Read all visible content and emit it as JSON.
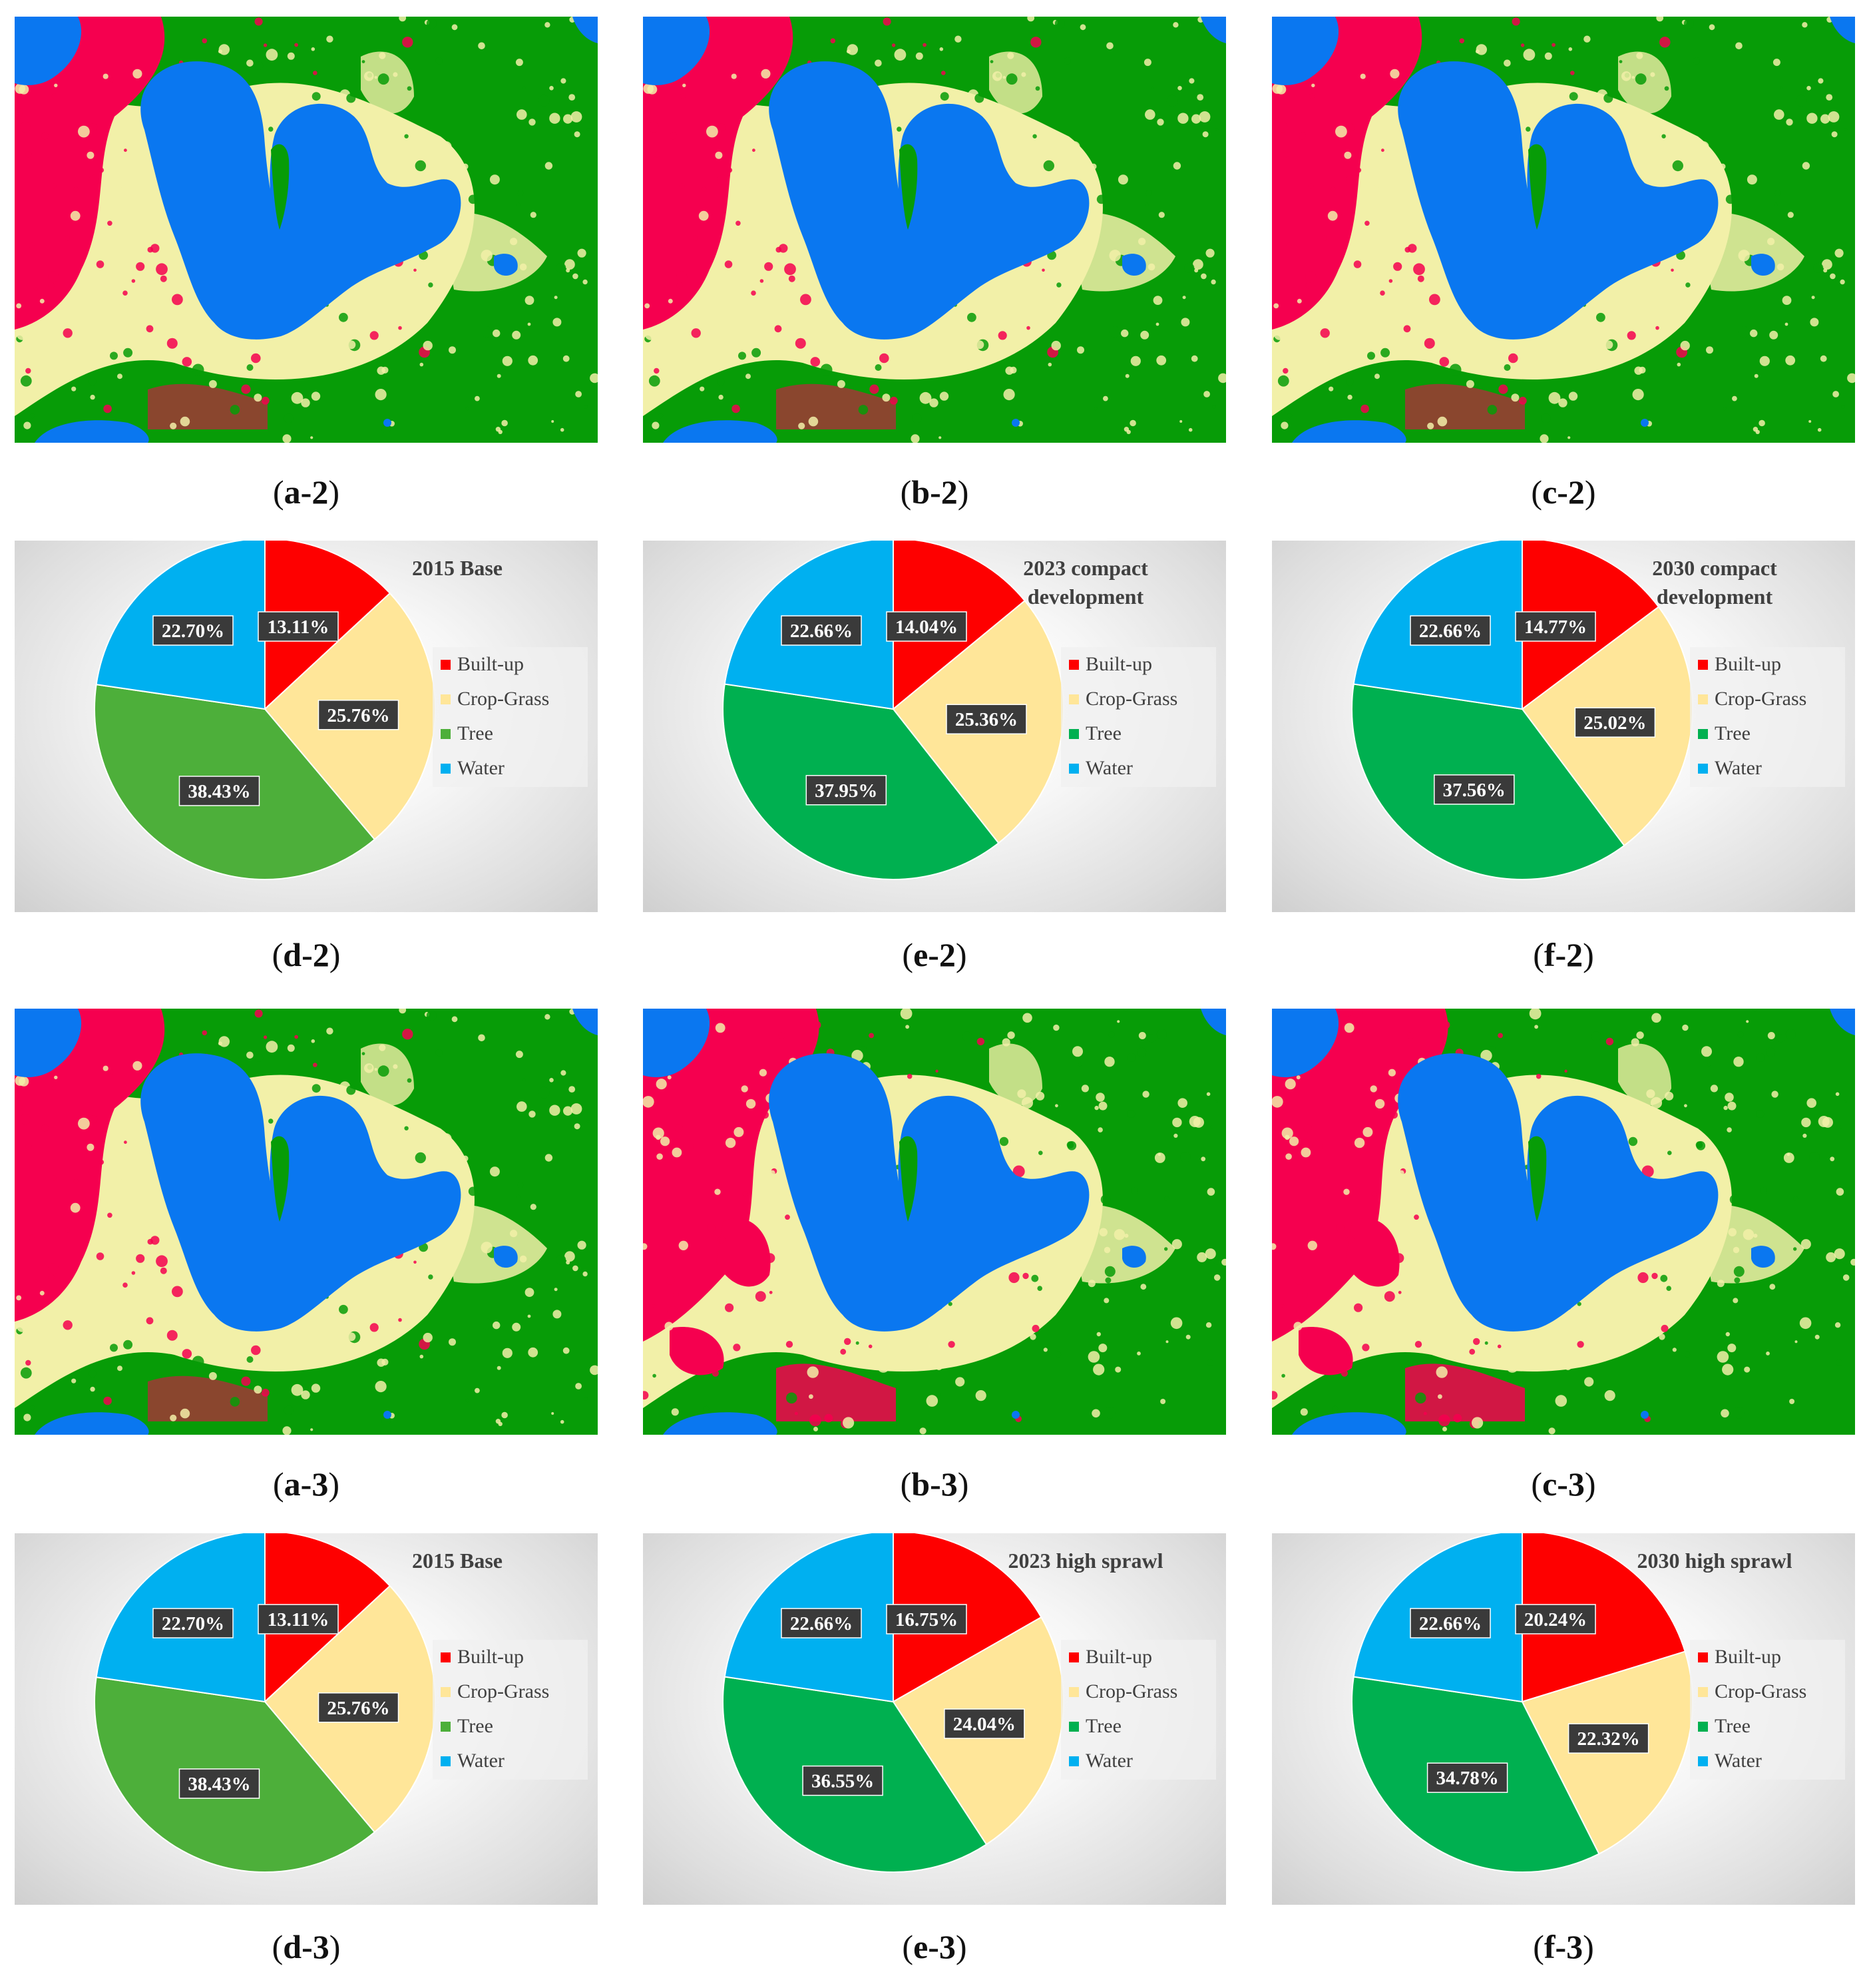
{
  "colors": {
    "built_up": "#fe0000",
    "crop_grass": "#ffe699",
    "tree_base": "#4daf3a",
    "tree": "#00b050",
    "water": "#00b0f0",
    "map_red": "#f5004f",
    "map_yellow": "#f2f0a8",
    "map_green": "#079c07",
    "map_blue": "#0a77f0"
  },
  "legend": [
    "Built-up",
    "Crop-Grass",
    "Tree",
    "Water"
  ],
  "maps": [
    {
      "id": "map-a-2",
      "label_main": "a-2"
    },
    {
      "id": "map-b-2",
      "label_main": "b-2"
    },
    {
      "id": "map-c-2",
      "label_main": "c-2"
    },
    {
      "id": "map-a-3",
      "label_main": "a-3"
    },
    {
      "id": "map-b-3",
      "label_main": "b-3"
    },
    {
      "id": "map-c-3",
      "label_main": "c-3"
    }
  ],
  "chart_data": [
    {
      "type": "pie",
      "panel": "d-2",
      "title": "2015 Base",
      "categories": [
        "Built-up",
        "Crop-Grass",
        "Tree",
        "Water"
      ],
      "values": [
        13.11,
        25.76,
        38.43,
        22.7
      ],
      "labels": [
        "13.11%",
        "25.76%",
        "38.43%",
        "22.70%"
      ],
      "legend_placement": "right"
    },
    {
      "type": "pie",
      "panel": "e-2",
      "title": "2023 compact development",
      "categories": [
        "Built-up",
        "Crop-Grass",
        "Tree",
        "Water"
      ],
      "values": [
        14.04,
        25.36,
        37.95,
        22.66
      ],
      "labels": [
        "14.04%",
        "25.36%",
        "37.95%",
        "22.66%"
      ],
      "legend_placement": "right"
    },
    {
      "type": "pie",
      "panel": "f-2",
      "title": "2030 compact development",
      "categories": [
        "Built-up",
        "Crop-Grass",
        "Tree",
        "Water"
      ],
      "values": [
        14.77,
        25.02,
        37.56,
        22.66
      ],
      "labels": [
        "14.77%",
        "25.02%",
        "37.56%",
        "22.66%"
      ],
      "legend_placement": "right"
    },
    {
      "type": "pie",
      "panel": "d-3",
      "title": "2015 Base",
      "categories": [
        "Built-up",
        "Crop-Grass",
        "Tree",
        "Water"
      ],
      "values": [
        13.11,
        25.76,
        38.43,
        22.7
      ],
      "labels": [
        "13.11%",
        "25.76%",
        "38.43%",
        "22.70%"
      ],
      "legend_placement": "right"
    },
    {
      "type": "pie",
      "panel": "e-3",
      "title": "2023 high sprawl",
      "categories": [
        "Built-up",
        "Crop-Grass",
        "Tree",
        "Water"
      ],
      "values": [
        16.75,
        24.04,
        36.55,
        22.66
      ],
      "labels": [
        "16.75%",
        "24.04%",
        "36.55%",
        "22.66%"
      ],
      "legend_placement": "right"
    },
    {
      "type": "pie",
      "panel": "f-3",
      "title": "2030 high sprawl",
      "categories": [
        "Built-up",
        "Crop-Grass",
        "Tree",
        "Water"
      ],
      "values": [
        20.24,
        22.32,
        34.78,
        22.66
      ],
      "labels": [
        "20.24%",
        "22.32%",
        "34.78%",
        "22.66%"
      ],
      "legend_placement": "right"
    }
  ]
}
